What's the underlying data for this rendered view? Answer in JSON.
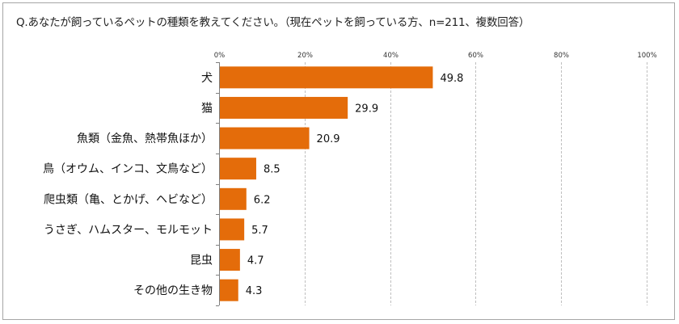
{
  "chart_data": {
    "type": "bar",
    "orientation": "horizontal",
    "title": "Q.あなたが飼っているペットの種類を教えてください。（現在ペットを飼っている方、n=211、複数回答）",
    "categories": [
      "犬",
      "猫",
      "魚類（金魚、熱帯魚ほか）",
      "鳥（オウム、インコ、文鳥など）",
      "爬虫類（亀、とかげ、ヘビなど）",
      "うさぎ、ハムスター、モルモット",
      "昆虫",
      "その他の生き物"
    ],
    "values": [
      49.8,
      29.9,
      20.9,
      8.5,
      6.2,
      5.7,
      4.7,
      4.3
    ],
    "value_labels": [
      "49.8",
      "29.9",
      "20.9",
      "8.5",
      "6.2",
      "5.7",
      "4.7",
      "4.3"
    ],
    "xlim": [
      0,
      100
    ],
    "x_ticks": [
      0,
      20,
      40,
      60,
      80,
      100
    ],
    "x_tick_labels": [
      "0%",
      "20%",
      "40%",
      "60%",
      "80%",
      "100%"
    ],
    "grid": true,
    "xlabel": "",
    "ylabel": "",
    "bar_color": "#e46c0a",
    "grid_color": "#bfbfbf",
    "axis_color": "#7f7f7f"
  }
}
